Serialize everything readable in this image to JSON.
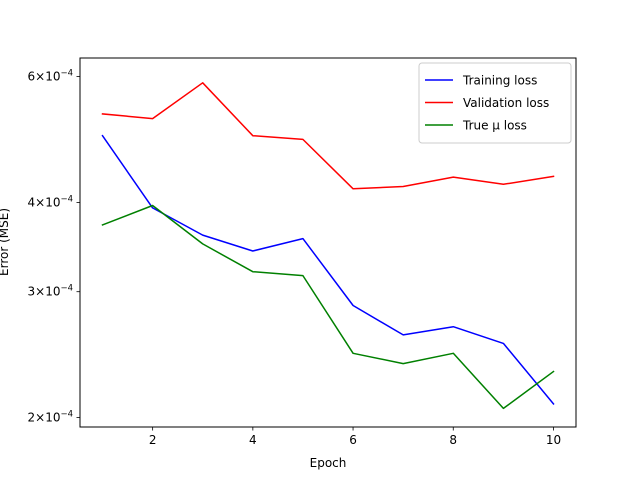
{
  "chart_data": {
    "type": "line",
    "title": "",
    "xlabel": "Epoch",
    "ylabel": "Error (MSE)",
    "yscale": "log",
    "xlim": [
      0.55,
      10.45
    ],
    "ylim": [
      0.000194,
      0.000637
    ],
    "x": [
      1,
      2,
      3,
      4,
      5,
      6,
      7,
      8,
      9,
      10
    ],
    "x_ticks": [
      2,
      4,
      6,
      8,
      10
    ],
    "x_tick_labels": [
      "2",
      "4",
      "6",
      "8",
      "10"
    ],
    "y_ticks": [
      0.0002,
      0.0003,
      0.0004,
      0.0006
    ],
    "y_tick_labels": [
      {
        "mantissa": "2",
        "times": "×",
        "base": "10",
        "exp": "−4"
      },
      {
        "mantissa": "3",
        "times": "×",
        "base": "10",
        "exp": "−4"
      },
      {
        "mantissa": "4",
        "times": "×",
        "base": "10",
        "exp": "−4"
      },
      {
        "mantissa": "6",
        "times": "×",
        "base": "10",
        "exp": "−4"
      }
    ],
    "grid": false,
    "legend_position": "upper-right",
    "series": [
      {
        "name": "Training loss",
        "color": "#0000ff",
        "values": [
          0.000496,
          0.000393,
          0.00036,
          0.000342,
          0.000356,
          0.000287,
          0.000261,
          0.000268,
          0.000254,
          0.000209
        ]
      },
      {
        "name": "Validation loss",
        "color": "#ff0000",
        "values": [
          0.000532,
          0.000524,
          0.000588,
          0.000496,
          0.00049,
          0.000418,
          0.000421,
          0.000434,
          0.000424,
          0.000435
        ]
      },
      {
        "name": "True μ loss",
        "color": "#008000",
        "values": [
          0.000372,
          0.000396,
          0.00035,
          0.00032,
          0.000316,
          0.000246,
          0.000238,
          0.000246,
          0.000206,
          0.000232
        ]
      }
    ]
  }
}
